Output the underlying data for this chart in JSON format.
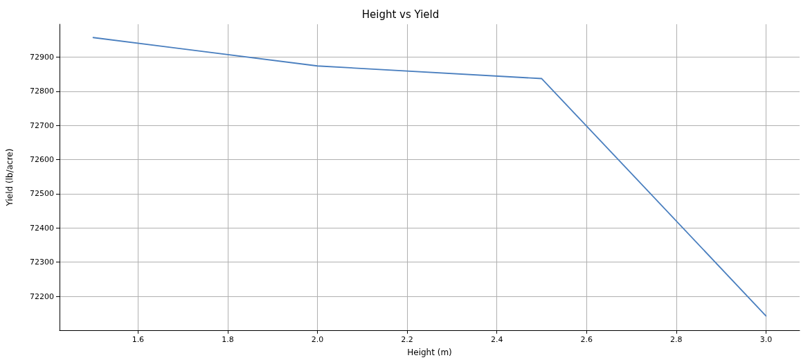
{
  "chart_data": {
    "type": "line",
    "title": "Height vs Yield",
    "xlabel": "Height (m)",
    "ylabel": "Yield (lb/acre)",
    "x": [
      1.5,
      2.0,
      2.5,
      3.0
    ],
    "series": [
      {
        "color": "#4a7fbf",
        "values": [
          72957,
          72874,
          72837,
          72143
        ]
      }
    ],
    "xlim": [
      1.425,
      3.075
    ],
    "xticks": [
      1.6,
      1.8,
      {
        "value": 2,
        "label": "2.0"
      },
      2.2,
      2.4,
      2.6,
      2.8,
      {
        "value": 3,
        "label": "3.0"
      }
    ],
    "ylim": [
      72101,
      72996
    ],
    "yticks": [
      72200,
      72300,
      72400,
      72500,
      72600,
      72700,
      72800,
      72900
    ],
    "grid": true,
    "marker": "none",
    "line_style": "solid"
  }
}
